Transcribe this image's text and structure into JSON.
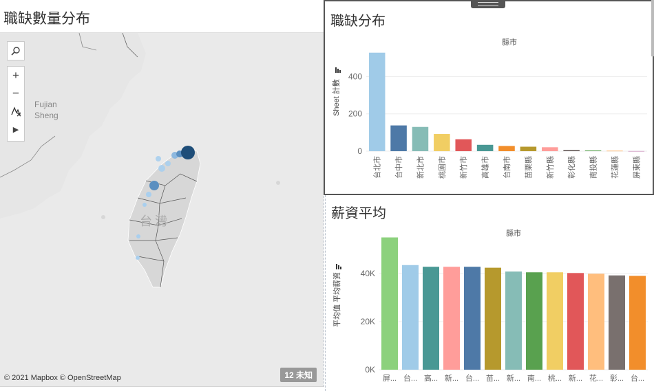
{
  "map_panel": {
    "title": "職缺數量分布",
    "region_label_fujian_1": "Fujian",
    "region_label_fujian_2": "Sheng",
    "region_label_taiwan": "台灣",
    "credit": "© 2021 Mapbox © OpenStreetMap",
    "unknown_badge": "12 未知",
    "tools": {
      "search_icon": "magnifier",
      "zoom_in": "+",
      "zoom_out": "−",
      "pan_icon": "pan-select",
      "play_icon": "▶"
    },
    "colors": {
      "water": "#ffffff",
      "land": "#e6e6e6",
      "taiwan": "#d4d4d4",
      "dot_dark": "#1f4e79",
      "dot_mid": "#5b8fc0",
      "dot_light": "#a9cfee"
    }
  },
  "bar1_panel": {
    "title": "職缺分布",
    "chart_data": {
      "type": "bar",
      "header": "縣市",
      "ylabel": "Sheet 計數",
      "yticks": [
        "400",
        "200",
        "0"
      ],
      "ylim": [
        0,
        560
      ],
      "categories": [
        "台北市",
        "台中市",
        "新北市",
        "桃園市",
        "新竹市",
        "高雄市",
        "台南市",
        "苗栗縣",
        "新竹縣",
        "彰化縣",
        "南投縣",
        "花蓮縣",
        "屏東縣"
      ],
      "values": [
        528,
        138,
        130,
        92,
        64,
        34,
        28,
        24,
        21,
        7,
        4,
        3,
        1
      ],
      "colors": [
        "#a0cbe8",
        "#4e79a7",
        "#86bcb6",
        "#f1ce63",
        "#e15759",
        "#499894",
        "#f28e2b",
        "#b6992d",
        "#ff9d9a",
        "#79706e",
        "#59a14f",
        "#ffbe7d",
        "#d4a6c8"
      ],
      "grid": true
    }
  },
  "bar2_panel": {
    "title": "薪資平均",
    "chart_data": {
      "type": "bar",
      "header": "縣市",
      "ylabel": "平均值 平均薪資",
      "yticks": [
        "40K",
        "20K",
        "0K"
      ],
      "ylim": [
        0,
        60000
      ],
      "categories": [
        "屏...",
        "台...",
        "高...",
        "新...",
        "台...",
        "苗...",
        "新...",
        "南...",
        "桃...",
        "新...",
        "花...",
        "彰...",
        "台..."
      ],
      "values": [
        55000,
        43500,
        42800,
        42800,
        42800,
        42400,
        40800,
        40500,
        40500,
        40200,
        39900,
        39200,
        39000
      ],
      "colors": [
        "#8cd17d",
        "#a0cbe8",
        "#499894",
        "#ff9d9a",
        "#4e79a7",
        "#b6992d",
        "#86bcb6",
        "#59a14f",
        "#f1ce63",
        "#e15759",
        "#ffbe7d",
        "#79706e",
        "#f28e2b"
      ],
      "grid": true
    }
  }
}
